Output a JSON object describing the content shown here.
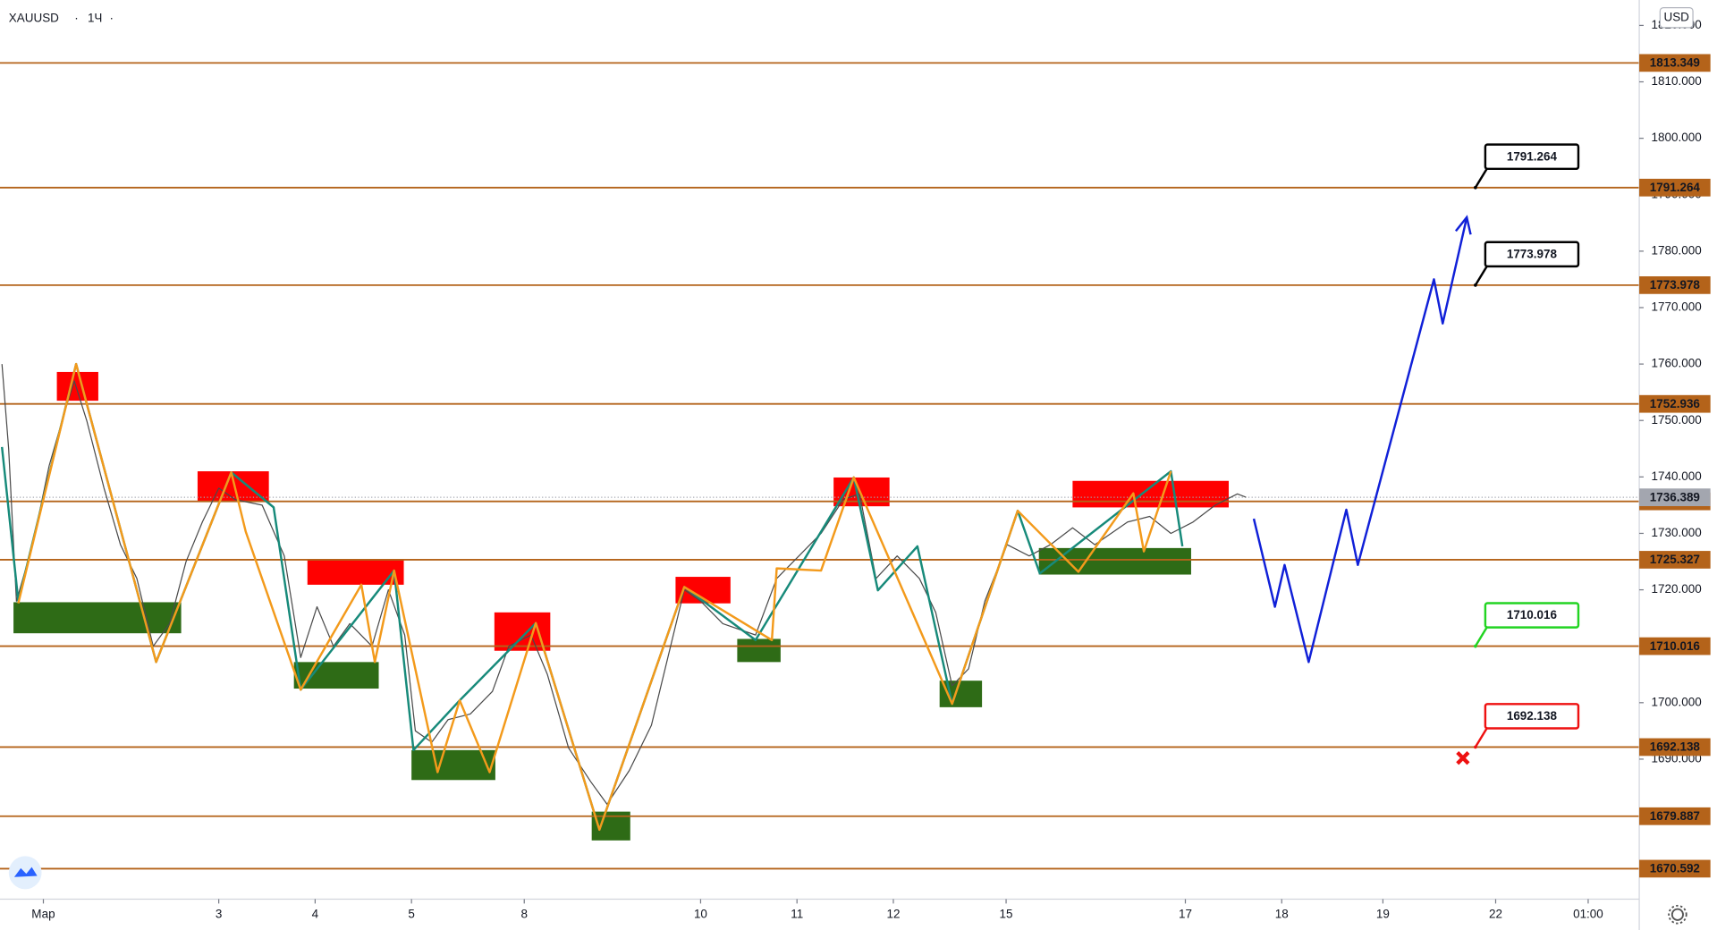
{
  "chart_data": {
    "type": "line",
    "symbol": "XAUUSD",
    "interval": "1Ч",
    "currency": "USD",
    "xlim": [
      -0.45,
      16.56
    ],
    "ylim": [
      1665.2,
      1824.5
    ],
    "xticks": [
      {
        "value": 0,
        "label": "Мар"
      },
      {
        "value": 1.82,
        "label": "3"
      },
      {
        "value": 2.82,
        "label": "4"
      },
      {
        "value": 3.82,
        "label": "5"
      },
      {
        "value": 4.99,
        "label": "8"
      },
      {
        "value": 6.82,
        "label": "10"
      },
      {
        "value": 7.82,
        "label": "11"
      },
      {
        "value": 8.82,
        "label": "12"
      },
      {
        "value": 9.99,
        "label": "15"
      },
      {
        "value": 11.85,
        "label": "17"
      },
      {
        "value": 12.85,
        "label": "18"
      },
      {
        "value": 13.9,
        "label": "19"
      },
      {
        "value": 15.07,
        "label": "22"
      },
      {
        "value": 16.03,
        "label": "01:00"
      }
    ],
    "yticks": [
      {
        "value": 1690,
        "label": "1690.000"
      },
      {
        "value": 1700,
        "label": "1700.000"
      },
      {
        "value": 1710,
        "label": "1710.000"
      },
      {
        "value": 1720,
        "label": "1720.000"
      },
      {
        "value": 1730,
        "label": "1730.000"
      },
      {
        "value": 1740,
        "label": "1740.000"
      },
      {
        "value": 1750,
        "label": "1750.000"
      },
      {
        "value": 1760,
        "label": "1760.000"
      },
      {
        "value": 1770,
        "label": "1770.000"
      },
      {
        "value": 1780,
        "label": "1780.000"
      },
      {
        "value": 1790,
        "label": "1790.000"
      },
      {
        "value": 1800,
        "label": "1800.000"
      },
      {
        "value": 1810,
        "label": "1810.000"
      },
      {
        "value": 1820,
        "label": "1820.000"
      }
    ],
    "levels": [
      {
        "value": 1813.349,
        "color": "#b4631a"
      },
      {
        "value": 1791.264,
        "color": "#b4631a"
      },
      {
        "value": 1773.978,
        "color": "#b4631a"
      },
      {
        "value": 1752.936,
        "color": "#b4631a"
      },
      {
        "value": 1735.67,
        "color": "#b4631a"
      },
      {
        "value": 1725.327,
        "color": "#b4631a"
      },
      {
        "value": 1710.016,
        "color": "#b4631a"
      },
      {
        "value": 1692.138,
        "color": "#b4631a"
      },
      {
        "value": 1679.887,
        "color": "#b4631a"
      },
      {
        "value": 1670.592,
        "color": "#b4631a"
      }
    ],
    "current_price": {
      "value": 1736.389,
      "color": "#a3a6af"
    },
    "zones": [
      {
        "color": "#ff0000",
        "x": [
          0.14,
          0.57
        ],
        "y": [
          1753.5,
          1758.6
        ]
      },
      {
        "color": "#ff0000",
        "x": [
          1.6,
          2.34
        ],
        "y": [
          1735.6,
          1741.0
        ]
      },
      {
        "color": "#ff0000",
        "x": [
          2.74,
          3.74
        ],
        "y": [
          1720.9,
          1725.4
        ]
      },
      {
        "color": "#ff0000",
        "x": [
          4.68,
          5.26
        ],
        "y": [
          1709.2,
          1716.0
        ]
      },
      {
        "color": "#ff0000",
        "x": [
          6.56,
          7.13
        ],
        "y": [
          1717.6,
          1722.3
        ]
      },
      {
        "color": "#ff0000",
        "x": [
          8.2,
          8.78
        ],
        "y": [
          1734.8,
          1739.9
        ]
      },
      {
        "color": "#ff0000",
        "x": [
          10.68,
          12.3
        ],
        "y": [
          1734.6,
          1739.3
        ]
      },
      {
        "color": "#2e6b16",
        "x": [
          -0.31,
          1.43
        ],
        "y": [
          1712.3,
          1717.8
        ]
      },
      {
        "color": "#2e6b16",
        "x": [
          2.6,
          3.48
        ],
        "y": [
          1702.5,
          1707.2
        ]
      },
      {
        "color": "#2e6b16",
        "x": [
          3.82,
          4.69
        ],
        "y": [
          1686.3,
          1691.6
        ]
      },
      {
        "color": "#2e6b16",
        "x": [
          5.69,
          6.09
        ],
        "y": [
          1675.6,
          1680.7
        ]
      },
      {
        "color": "#2e6b16",
        "x": [
          7.2,
          7.65
        ],
        "y": [
          1707.2,
          1711.3
        ]
      },
      {
        "color": "#2e6b16",
        "x": [
          9.3,
          9.74
        ],
        "y": [
          1699.2,
          1703.9
        ]
      },
      {
        "color": "#2e6b16",
        "x": [
          10.33,
          11.91
        ],
        "y": [
          1722.7,
          1727.4
        ]
      }
    ],
    "series": [
      {
        "color": "#4a4a4a",
        "x": [
          -0.43,
          -0.36,
          -0.28,
          -0.11,
          0.06,
          0.23,
          0.32,
          0.45,
          0.63,
          0.8,
          0.97,
          1.14,
          1.31,
          1.48,
          1.65,
          1.82,
          1.99,
          2.27,
          2.5,
          2.67,
          2.84,
          3.01,
          3.18,
          3.41,
          3.58,
          3.75,
          3.86,
          4.03,
          4.2,
          4.43,
          4.66,
          4.83,
          5.06,
          5.23,
          5.45,
          5.68,
          5.85,
          6.08,
          6.31,
          6.48,
          6.65,
          6.82,
          7.05,
          7.39,
          7.61,
          7.84,
          8.07,
          8.3,
          8.47,
          8.64,
          8.86,
          9.09,
          9.26,
          9.43,
          9.6,
          9.77,
          10,
          10.23,
          10.45,
          10.68,
          10.91,
          11.25,
          11.48,
          11.7,
          11.93,
          12.16,
          12.39,
          12.48
        ],
        "values": [
          1760,
          1745,
          1718,
          1728,
          1742,
          1752,
          1757,
          1750,
          1738,
          1728,
          1722,
          1710,
          1714,
          1725,
          1732,
          1738,
          1736,
          1735,
          1726,
          1708,
          1717,
          1710,
          1714,
          1710,
          1720,
          1712,
          1695,
          1693,
          1697,
          1698,
          1702,
          1710,
          1712,
          1705,
          1692,
          1686,
          1682,
          1688,
          1696,
          1708,
          1720,
          1718,
          1714,
          1712,
          1722,
          1726,
          1730,
          1736,
          1737,
          1722,
          1726,
          1722,
          1716,
          1703,
          1706,
          1718,
          1728,
          1726,
          1728,
          1731,
          1728,
          1732,
          1733,
          1730,
          1732,
          1735,
          1737,
          1736.4
        ]
      },
      {
        "color": "#178a7a",
        "x": [
          -0.43,
          -0.26,
          0.34,
          1.17,
          1.95,
          2.39,
          2.67,
          3.64,
          3.84,
          4.32,
          5.11,
          5.77,
          6.65,
          7.39,
          8.41,
          8.66,
          9.07,
          9.43,
          10.11,
          10.34,
          11.7,
          11.82
        ],
        "values": [
          1745.3,
          1718.0,
          1760.0,
          1707.2,
          1740.8,
          1734.6,
          1702.3,
          1723.4,
          1691.6,
          1700.4,
          1714.1,
          1677.5,
          1720.5,
          1711.1,
          1739.9,
          1719.9,
          1727.7,
          1699.8,
          1734.0,
          1722.9,
          1741.0,
          1727.7
        ]
      },
      {
        "color": "#f39a1b",
        "x": [
          -0.26,
          0.34,
          1.17,
          1.95,
          2.1,
          2.67,
          3.3,
          3.44,
          3.64,
          4.09,
          4.32,
          4.63,
          5.11,
          5.77,
          6.65,
          7.56,
          7.61,
          8.07,
          8.41,
          9.43,
          10.11,
          10.74,
          11.31,
          11.42,
          11.7
        ],
        "values": [
          1717.6,
          1760.0,
          1707.2,
          1740.8,
          1730.3,
          1702.3,
          1720.9,
          1707.2,
          1723.4,
          1687.7,
          1700.4,
          1687.7,
          1714.1,
          1677.5,
          1720.5,
          1711.1,
          1723.8,
          1723.4,
          1739.9,
          1699.8,
          1734.0,
          1723.2,
          1737.1,
          1726.8,
          1741.0
        ]
      },
      {
        "color": "#1020d8",
        "x": [
          12.56,
          12.78,
          12.88,
          13.13,
          13.52,
          13.64,
          14.43,
          14.52,
          14.77
        ],
        "values": [
          1732.6,
          1717.0,
          1724.4,
          1707.2,
          1734.2,
          1724.4,
          1775.0,
          1767.2,
          1786.0
        ]
      }
    ],
    "callouts": [
      {
        "x": 14.86,
        "value": 1791.264,
        "color": "#000000"
      },
      {
        "x": 14.86,
        "value": 1773.978,
        "color": "#000000"
      },
      {
        "x": 14.86,
        "value": 1710.016,
        "color": "#22d422"
      },
      {
        "x": 14.86,
        "value": 1692.138,
        "color": "#ee1111"
      }
    ],
    "marker": {
      "x": 14.73,
      "value": 1690.2,
      "color": "#ee1111"
    }
  }
}
